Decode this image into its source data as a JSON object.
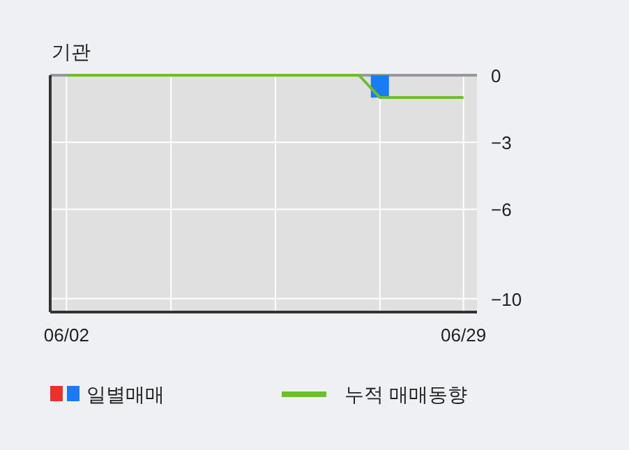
{
  "chart_data": {
    "type": "bar",
    "title": "기관",
    "categories": [
      "06/02",
      null,
      null,
      null,
      null,
      null,
      null,
      null,
      null,
      null,
      null,
      null,
      null,
      null,
      null,
      null,
      null,
      null,
      null,
      "06/29"
    ],
    "series": [
      {
        "name": "일별매매",
        "color": "#1a7cf5",
        "values": [
          0,
          0,
          0,
          0,
          0,
          0,
          0,
          0,
          0,
          0,
          0,
          0,
          0,
          0,
          0,
          -1,
          0,
          0,
          0,
          0
        ]
      },
      {
        "name": "누적 매매동향",
        "type": "line",
        "color": "#6cbf2a",
        "values": [
          0,
          0,
          0,
          0,
          0,
          0,
          0,
          0,
          0,
          0,
          0,
          0,
          0,
          0,
          0,
          -1,
          -1,
          -1,
          -1,
          -1
        ]
      }
    ],
    "ylim": [
      -10.6,
      0
    ],
    "yticks": [
      0,
      -3,
      -6,
      -10
    ],
    "grid": true,
    "legend": "bottom"
  }
}
